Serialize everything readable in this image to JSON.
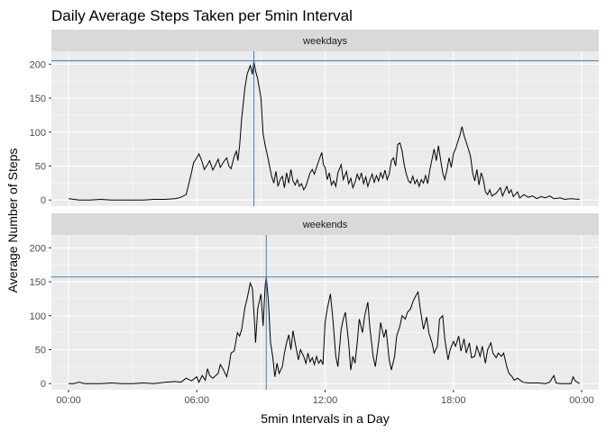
{
  "chart_data": {
    "type": "line",
    "title": "Daily Average Steps Taken per 5min Interval",
    "xlabel": "5min Intervals in a Day",
    "ylabel": "Average Number of Steps",
    "x_ticks": [
      "00:00",
      "06:00",
      "12:00",
      "18:00",
      "00:00"
    ],
    "x_tick_hours": [
      0,
      6,
      12,
      18,
      24
    ],
    "y_ticks": [
      0,
      50,
      100,
      150,
      200
    ],
    "xlim_hours": [
      -0.8,
      24.8
    ],
    "ylim": [
      -9,
      219
    ],
    "grid": true,
    "colors": {
      "panel_bg": "#ebebeb",
      "strip_bg": "#d9d9d9",
      "grid_major": "#ffffff",
      "line": "#000000",
      "reference_line": "#4682b4"
    },
    "panels": [
      {
        "label": "weekdays",
        "peak_hour": 8.67,
        "peak_value": 205,
        "points": [
          [
            0.0,
            2
          ],
          [
            0.5,
            0
          ],
          [
            1.0,
            0
          ],
          [
            1.5,
            1
          ],
          [
            2.0,
            0
          ],
          [
            2.5,
            0
          ],
          [
            3.0,
            0
          ],
          [
            3.5,
            0
          ],
          [
            4.0,
            1
          ],
          [
            4.5,
            1
          ],
          [
            5.0,
            2
          ],
          [
            5.25,
            4
          ],
          [
            5.5,
            8
          ],
          [
            5.6,
            20
          ],
          [
            5.75,
            40
          ],
          [
            5.85,
            55
          ],
          [
            6.0,
            62
          ],
          [
            6.1,
            68
          ],
          [
            6.25,
            56
          ],
          [
            6.35,
            45
          ],
          [
            6.5,
            52
          ],
          [
            6.6,
            58
          ],
          [
            6.75,
            44
          ],
          [
            6.85,
            50
          ],
          [
            7.0,
            60
          ],
          [
            7.1,
            48
          ],
          [
            7.25,
            56
          ],
          [
            7.4,
            62
          ],
          [
            7.5,
            50
          ],
          [
            7.6,
            46
          ],
          [
            7.75,
            64
          ],
          [
            7.85,
            72
          ],
          [
            7.92,
            58
          ],
          [
            8.0,
            80
          ],
          [
            8.1,
            120
          ],
          [
            8.25,
            165
          ],
          [
            8.35,
            185
          ],
          [
            8.5,
            198
          ],
          [
            8.6,
            185
          ],
          [
            8.67,
            205
          ],
          [
            8.75,
            190
          ],
          [
            8.85,
            178
          ],
          [
            9.0,
            150
          ],
          [
            9.1,
            98
          ],
          [
            9.2,
            80
          ],
          [
            9.3,
            66
          ],
          [
            9.4,
            50
          ],
          [
            9.5,
            35
          ],
          [
            9.6,
            25
          ],
          [
            9.7,
            42
          ],
          [
            9.8,
            20
          ],
          [
            9.9,
            30
          ],
          [
            10.0,
            35
          ],
          [
            10.1,
            18
          ],
          [
            10.2,
            40
          ],
          [
            10.3,
            25
          ],
          [
            10.4,
            45
          ],
          [
            10.5,
            28
          ],
          [
            10.6,
            22
          ],
          [
            10.7,
            30
          ],
          [
            10.8,
            20
          ],
          [
            10.9,
            24
          ],
          [
            11.0,
            15
          ],
          [
            11.1,
            20
          ],
          [
            11.2,
            30
          ],
          [
            11.3,
            40
          ],
          [
            11.4,
            45
          ],
          [
            11.5,
            38
          ],
          [
            11.6,
            48
          ],
          [
            11.75,
            62
          ],
          [
            11.85,
            70
          ],
          [
            11.92,
            52
          ],
          [
            12.0,
            48
          ],
          [
            12.1,
            30
          ],
          [
            12.2,
            40
          ],
          [
            12.3,
            22
          ],
          [
            12.4,
            28
          ],
          [
            12.5,
            20
          ],
          [
            12.6,
            40
          ],
          [
            12.75,
            52
          ],
          [
            12.85,
            30
          ],
          [
            13.0,
            42
          ],
          [
            13.1,
            24
          ],
          [
            13.2,
            32
          ],
          [
            13.3,
            18
          ],
          [
            13.4,
            26
          ],
          [
            13.5,
            38
          ],
          [
            13.6,
            30
          ],
          [
            13.7,
            40
          ],
          [
            13.8,
            24
          ],
          [
            13.9,
            34
          ],
          [
            14.0,
            20
          ],
          [
            14.1,
            30
          ],
          [
            14.2,
            38
          ],
          [
            14.3,
            26
          ],
          [
            14.4,
            36
          ],
          [
            14.5,
            28
          ],
          [
            14.6,
            40
          ],
          [
            14.7,
            32
          ],
          [
            14.8,
            44
          ],
          [
            14.9,
            30
          ],
          [
            15.0,
            38
          ],
          [
            15.1,
            58
          ],
          [
            15.2,
            62
          ],
          [
            15.3,
            50
          ],
          [
            15.4,
            82
          ],
          [
            15.5,
            84
          ],
          [
            15.6,
            72
          ],
          [
            15.7,
            52
          ],
          [
            15.8,
            38
          ],
          [
            15.9,
            28
          ],
          [
            16.0,
            25
          ],
          [
            16.1,
            35
          ],
          [
            16.2,
            24
          ],
          [
            16.3,
            30
          ],
          [
            16.4,
            20
          ],
          [
            16.5,
            30
          ],
          [
            16.6,
            25
          ],
          [
            16.7,
            36
          ],
          [
            16.8,
            24
          ],
          [
            16.9,
            45
          ],
          [
            17.0,
            60
          ],
          [
            17.1,
            75
          ],
          [
            17.2,
            58
          ],
          [
            17.3,
            80
          ],
          [
            17.4,
            60
          ],
          [
            17.5,
            40
          ],
          [
            17.6,
            30
          ],
          [
            17.7,
            45
          ],
          [
            17.8,
            62
          ],
          [
            17.9,
            48
          ],
          [
            18.0,
            68
          ],
          [
            18.1,
            75
          ],
          [
            18.2,
            85
          ],
          [
            18.3,
            95
          ],
          [
            18.4,
            108
          ],
          [
            18.5,
            95
          ],
          [
            18.6,
            85
          ],
          [
            18.7,
            75
          ],
          [
            18.8,
            65
          ],
          [
            18.9,
            40
          ],
          [
            19.0,
            28
          ],
          [
            19.1,
            45
          ],
          [
            19.2,
            22
          ],
          [
            19.3,
            40
          ],
          [
            19.4,
            30
          ],
          [
            19.5,
            12
          ],
          [
            19.6,
            8
          ],
          [
            19.7,
            15
          ],
          [
            19.8,
            6
          ],
          [
            20.0,
            10
          ],
          [
            20.2,
            18
          ],
          [
            20.3,
            6
          ],
          [
            20.5,
            20
          ],
          [
            20.6,
            10
          ],
          [
            20.7,
            15
          ],
          [
            20.8,
            5
          ],
          [
            21.0,
            12
          ],
          [
            21.1,
            3
          ],
          [
            21.3,
            8
          ],
          [
            21.5,
            4
          ],
          [
            21.7,
            6
          ],
          [
            21.9,
            2
          ],
          [
            22.1,
            5
          ],
          [
            22.3,
            3
          ],
          [
            22.5,
            6
          ],
          [
            22.7,
            2
          ],
          [
            23.0,
            3
          ],
          [
            23.2,
            1
          ],
          [
            23.5,
            2
          ],
          [
            23.9,
            1
          ]
        ]
      },
      {
        "label": "weekends",
        "peak_hour": 9.25,
        "peak_value": 157,
        "points": [
          [
            0.0,
            0
          ],
          [
            0.25,
            0
          ],
          [
            0.5,
            2
          ],
          [
            0.75,
            0
          ],
          [
            1.0,
            0
          ],
          [
            1.5,
            0
          ],
          [
            2.0,
            1
          ],
          [
            2.5,
            0
          ],
          [
            3.0,
            0
          ],
          [
            3.5,
            1
          ],
          [
            4.0,
            0
          ],
          [
            4.5,
            2
          ],
          [
            5.0,
            3
          ],
          [
            5.25,
            2
          ],
          [
            5.5,
            8
          ],
          [
            5.75,
            4
          ],
          [
            6.0,
            10
          ],
          [
            6.1,
            2
          ],
          [
            6.25,
            12
          ],
          [
            6.4,
            5
          ],
          [
            6.5,
            22
          ],
          [
            6.6,
            12
          ],
          [
            6.75,
            8
          ],
          [
            7.0,
            15
          ],
          [
            7.1,
            28
          ],
          [
            7.25,
            20
          ],
          [
            7.4,
            10
          ],
          [
            7.5,
            25
          ],
          [
            7.6,
            45
          ],
          [
            7.75,
            48
          ],
          [
            7.9,
            75
          ],
          [
            8.0,
            70
          ],
          [
            8.1,
            80
          ],
          [
            8.25,
            112
          ],
          [
            8.35,
            125
          ],
          [
            8.5,
            148
          ],
          [
            8.6,
            140
          ],
          [
            8.7,
            90
          ],
          [
            8.75,
            60
          ],
          [
            8.85,
            110
          ],
          [
            9.0,
            132
          ],
          [
            9.1,
            85
          ],
          [
            9.2,
            145
          ],
          [
            9.25,
            157
          ],
          [
            9.35,
            120
          ],
          [
            9.45,
            60
          ],
          [
            9.55,
            40
          ],
          [
            9.65,
            10
          ],
          [
            9.75,
            30
          ],
          [
            9.85,
            15
          ],
          [
            10.0,
            25
          ],
          [
            10.1,
            45
          ],
          [
            10.2,
            60
          ],
          [
            10.3,
            72
          ],
          [
            10.4,
            50
          ],
          [
            10.5,
            78
          ],
          [
            10.6,
            60
          ],
          [
            10.75,
            35
          ],
          [
            10.85,
            50
          ],
          [
            11.0,
            40
          ],
          [
            11.1,
            30
          ],
          [
            11.2,
            45
          ],
          [
            11.3,
            32
          ],
          [
            11.4,
            38
          ],
          [
            11.5,
            28
          ],
          [
            11.6,
            40
          ],
          [
            11.7,
            30
          ],
          [
            11.8,
            35
          ],
          [
            11.9,
            28
          ],
          [
            12.0,
            90
          ],
          [
            12.1,
            110
          ],
          [
            12.25,
            132
          ],
          [
            12.35,
            100
          ],
          [
            12.5,
            40
          ],
          [
            12.6,
            25
          ],
          [
            12.75,
            80
          ],
          [
            12.85,
            95
          ],
          [
            12.95,
            105
          ],
          [
            13.1,
            60
          ],
          [
            13.2,
            20
          ],
          [
            13.3,
            40
          ],
          [
            13.4,
            30
          ],
          [
            13.5,
            60
          ],
          [
            13.6,
            95
          ],
          [
            13.75,
            75
          ],
          [
            13.85,
            100
          ],
          [
            14.0,
            120
          ],
          [
            14.1,
            80
          ],
          [
            14.25,
            40
          ],
          [
            14.35,
            25
          ],
          [
            14.5,
            60
          ],
          [
            14.6,
            90
          ],
          [
            14.75,
            68
          ],
          [
            14.85,
            80
          ],
          [
            15.0,
            35
          ],
          [
            15.1,
            20
          ],
          [
            15.25,
            40
          ],
          [
            15.35,
            70
          ],
          [
            15.5,
            85
          ],
          [
            15.6,
            100
          ],
          [
            15.75,
            95
          ],
          [
            15.85,
            105
          ],
          [
            16.0,
            110
          ],
          [
            16.1,
            120
          ],
          [
            16.25,
            130
          ],
          [
            16.35,
            135
          ],
          [
            16.45,
            110
          ],
          [
            16.6,
            80
          ],
          [
            16.75,
            98
          ],
          [
            16.85,
            75
          ],
          [
            17.0,
            60
          ],
          [
            17.1,
            45
          ],
          [
            17.25,
            55
          ],
          [
            17.35,
            95
          ],
          [
            17.5,
            100
          ],
          [
            17.6,
            65
          ],
          [
            17.75,
            35
          ],
          [
            17.85,
            50
          ],
          [
            18.0,
            62
          ],
          [
            18.1,
            55
          ],
          [
            18.25,
            70
          ],
          [
            18.35,
            48
          ],
          [
            18.5,
            66
          ],
          [
            18.6,
            45
          ],
          [
            18.75,
            60
          ],
          [
            18.85,
            38
          ],
          [
            19.0,
            40
          ],
          [
            19.1,
            55
          ],
          [
            19.25,
            40
          ],
          [
            19.35,
            55
          ],
          [
            19.5,
            30
          ],
          [
            19.6,
            50
          ],
          [
            19.75,
            60
          ],
          [
            19.85,
            45
          ],
          [
            20.0,
            38
          ],
          [
            20.1,
            45
          ],
          [
            20.25,
            40
          ],
          [
            20.35,
            45
          ],
          [
            20.5,
            25
          ],
          [
            20.6,
            15
          ],
          [
            20.75,
            10
          ],
          [
            20.85,
            5
          ],
          [
            21.0,
            8
          ],
          [
            21.25,
            2
          ],
          [
            21.5,
            1
          ],
          [
            22.0,
            1
          ],
          [
            22.3,
            0
          ],
          [
            22.5,
            2
          ],
          [
            22.7,
            12
          ],
          [
            22.8,
            1
          ],
          [
            23.0,
            0
          ],
          [
            23.2,
            0
          ],
          [
            23.5,
            0
          ],
          [
            23.6,
            10
          ],
          [
            23.7,
            4
          ],
          [
            23.9,
            0
          ]
        ]
      }
    ]
  }
}
